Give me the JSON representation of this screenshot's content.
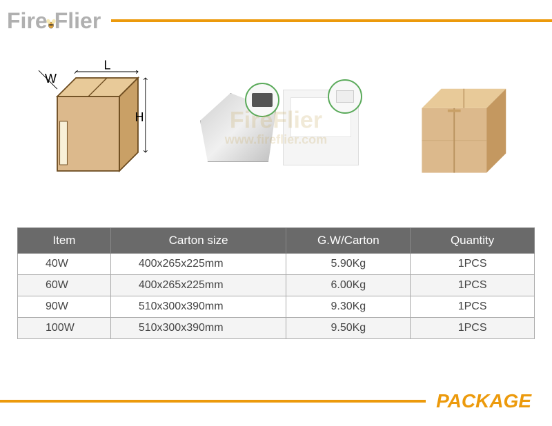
{
  "logo": {
    "fire": "Fire",
    "flier": "Flier"
  },
  "colors": {
    "accent": "#ec9a0c",
    "header_gray": "#b0b0b0",
    "table_header_bg": "#6a6a6a",
    "row_odd": "#ffffff",
    "row_even": "#f4f4f4",
    "border": "#aaaaaa",
    "green_circle": "#5aaa5a",
    "carton": "#d9b88a",
    "carton_dark": "#b9935f"
  },
  "box_labels": {
    "W": "W",
    "L": "L",
    "H": "H"
  },
  "watermark": {
    "brand": "FireFlier",
    "url": "www.fireflier.com"
  },
  "table": {
    "columns": [
      "Item",
      "Carton size",
      "G.W/Carton",
      "Quantity"
    ],
    "col_widths": [
      "18%",
      "34%",
      "24%",
      "24%"
    ],
    "rows": [
      [
        "40W",
        "400x265x225mm",
        "5.90Kg",
        "1PCS"
      ],
      [
        "60W",
        "400x265x225mm",
        "6.00Kg",
        "1PCS"
      ],
      [
        "90W",
        "510x300x390mm",
        "9.30Kg",
        "1PCS"
      ],
      [
        "100W",
        "510x300x390mm",
        "9.50Kg",
        "1PCS"
      ]
    ]
  },
  "footer_label": "PACKAGE"
}
